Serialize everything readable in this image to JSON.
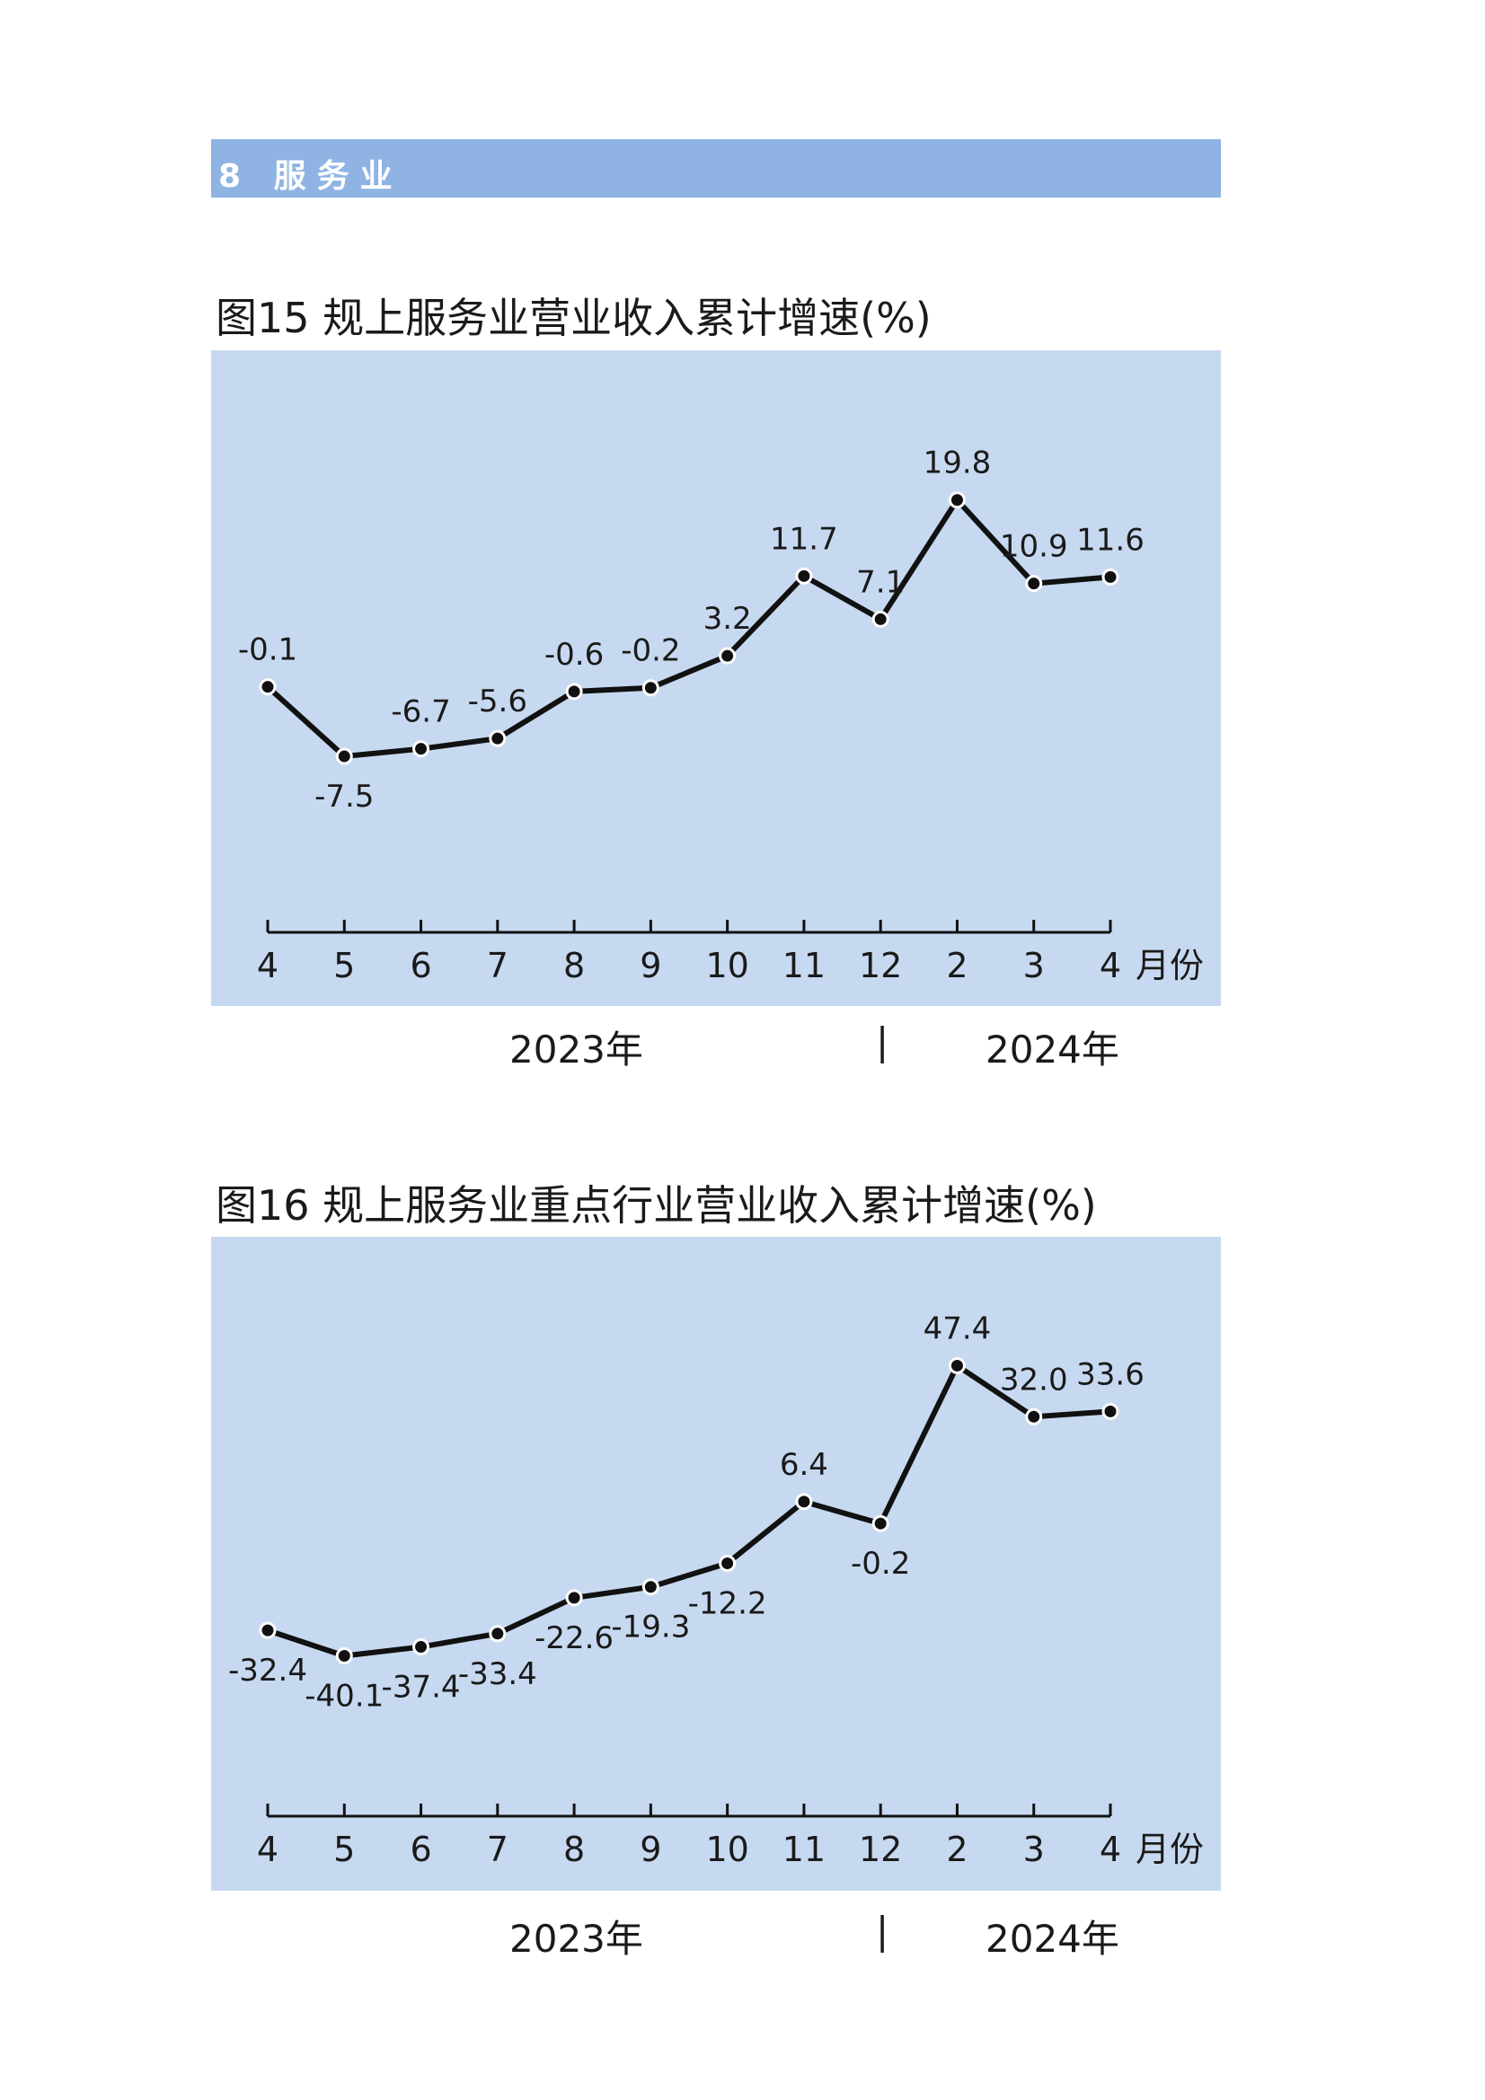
{
  "section": {
    "label": "8 服务业"
  },
  "charts": [
    {
      "title": "图15  规上服务业营业收入累计增速(%)",
      "x_unit": "月份",
      "years": {
        "first": "2023年",
        "separator": "|",
        "second": "2024年"
      }
    },
    {
      "title": "图16  规上服务业重点行业营业收入累计增速(%)",
      "x_unit": "月份",
      "years": {
        "first": "2023年",
        "separator": "|",
        "second": "2024年"
      }
    }
  ],
  "colors": {
    "panel_bg": "#c7d9f0",
    "section_bar": "#8fb4e3",
    "line": "#111111"
  },
  "chart_data": [
    {
      "type": "line",
      "title": "图15  规上服务业营业收入累计增速(%)",
      "xlabel": "月份",
      "ylabel": "",
      "categories": [
        "4",
        "5",
        "6",
        "7",
        "8",
        "9",
        "10",
        "11",
        "12",
        "2",
        "3",
        "4"
      ],
      "values": [
        -0.1,
        -7.5,
        -6.7,
        -5.6,
        -0.6,
        -0.2,
        3.2,
        11.7,
        7.1,
        19.8,
        10.9,
        11.6
      ],
      "labels": [
        "-0.1",
        "-7.5",
        "-6.7",
        "-5.6",
        "-0.6",
        "-0.2",
        "3.2",
        "11.7",
        "7.1",
        "19.8",
        "10.9",
        "11.6"
      ],
      "year_groups": [
        "2023年",
        "2024年"
      ],
      "grid": false
    },
    {
      "type": "line",
      "title": "图16  规上服务业重点行业营业收入累计增速(%)",
      "xlabel": "月份",
      "ylabel": "",
      "categories": [
        "4",
        "5",
        "6",
        "7",
        "8",
        "9",
        "10",
        "11",
        "12",
        "2",
        "3",
        "4"
      ],
      "values": [
        -32.4,
        -40.1,
        -37.4,
        -33.4,
        -22.6,
        -19.3,
        -12.2,
        6.4,
        -0.2,
        47.4,
        32.0,
        33.6
      ],
      "labels": [
        "-32.4",
        "-40.1",
        "-37.4",
        "-33.4",
        "-22.6",
        "-19.3",
        "-12.2",
        "6.4",
        "-0.2",
        "47.4",
        "32.0",
        "33.6"
      ],
      "year_groups": [
        "2023年",
        "2024年"
      ],
      "grid": false
    }
  ]
}
